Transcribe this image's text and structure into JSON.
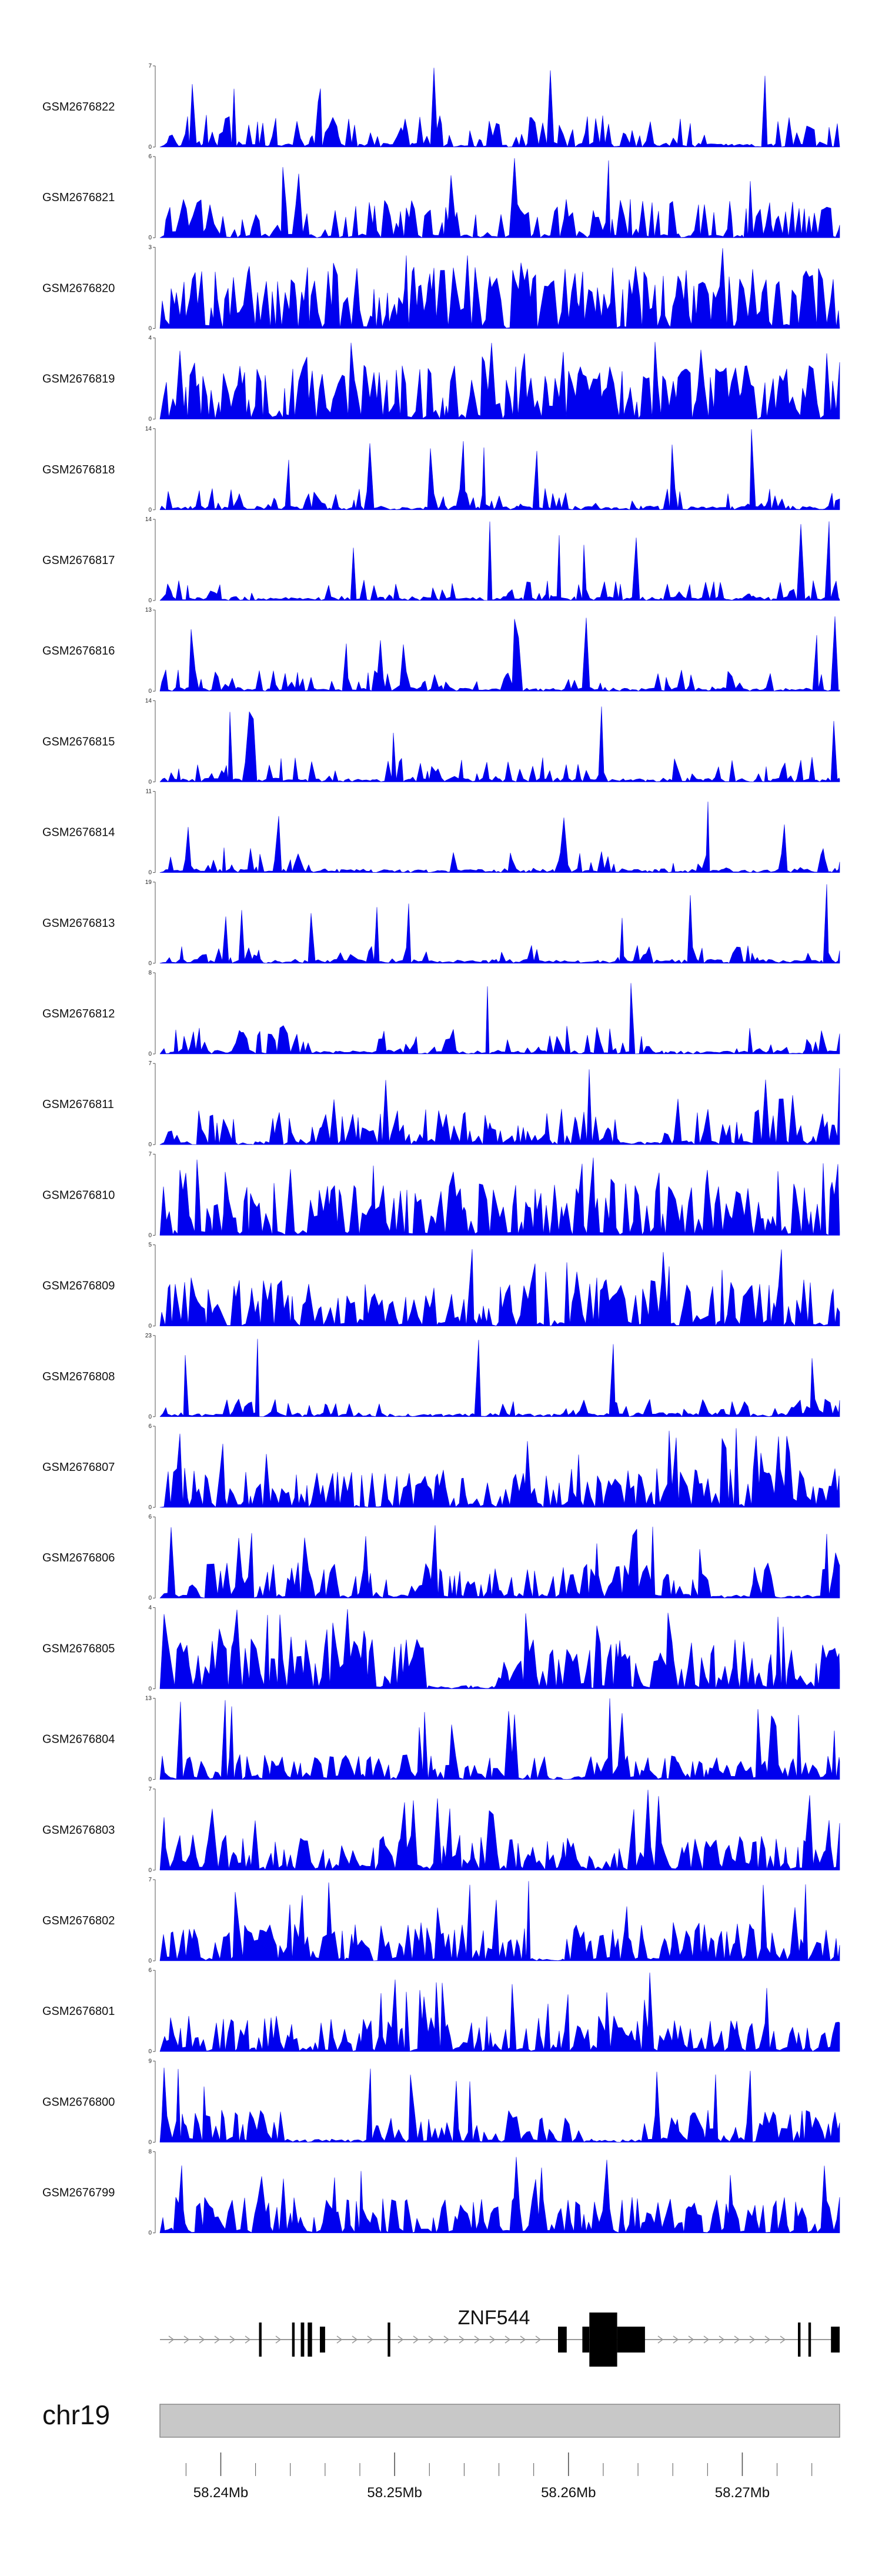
{
  "colors": {
    "signal": "#0000ee",
    "ideogram": "#c8c8c8",
    "ideogramBorder": "#8a8a8a",
    "axis": "#555555",
    "gene": "#000000",
    "intron": "#999999"
  },
  "chart_data": {
    "type": "area",
    "title": "",
    "chromosome": "chr19",
    "xlim_bp": [
      58236500,
      58275600
    ],
    "x_ticks_bp": [
      58240000,
      58250000,
      58260000,
      58270000
    ],
    "x_tick_labels": [
      "58.24Mb",
      "58.25Mb",
      "58.26Mb",
      "58.27Mb"
    ],
    "series": [
      {
        "name": "GSM2676822",
        "ymax": 7,
        "ymin": 0,
        "ymax_label": "7",
        "ymin_label": "0",
        "seed": 22,
        "density": 0.55,
        "gappiness": 0.15,
        "level": 0.18
      },
      {
        "name": "GSM2676821",
        "ymax": 6,
        "ymin": 0,
        "ymax_label": "6",
        "ymin_label": "0",
        "seed": 21,
        "density": 0.6,
        "gappiness": 0.15,
        "level": 0.22
      },
      {
        "name": "GSM2676820",
        "ymax": 3,
        "ymin": 0,
        "ymax_label": "3",
        "ymin_label": "0",
        "seed": 20,
        "density": 0.85,
        "gappiness": 0.05,
        "level": 0.35
      },
      {
        "name": "GSM2676819",
        "ymax": 4,
        "ymin": 0,
        "ymax_label": "4",
        "ymin_label": "0",
        "seed": 19,
        "density": 0.85,
        "gappiness": 0.05,
        "level": 0.3
      },
      {
        "name": "GSM2676818",
        "ymax": 14,
        "ymin": 0,
        "ymax_label": "14",
        "ymin_label": "0",
        "seed": 18,
        "density": 0.4,
        "gappiness": 0.2,
        "level": 0.12
      },
      {
        "name": "GSM2676817",
        "ymax": 14,
        "ymin": 0,
        "ymax_label": "14",
        "ymin_label": "0",
        "seed": 17,
        "density": 0.38,
        "gappiness": 0.22,
        "level": 0.12
      },
      {
        "name": "GSM2676816",
        "ymax": 13,
        "ymin": 0,
        "ymax_label": "13",
        "ymin_label": "0",
        "seed": 16,
        "density": 0.42,
        "gappiness": 0.18,
        "level": 0.12
      },
      {
        "name": "GSM2676815",
        "ymax": 14,
        "ymin": 0,
        "ymax_label": "14",
        "ymin_label": "0",
        "seed": 15,
        "density": 0.3,
        "gappiness": 0.3,
        "level": 0.14
      },
      {
        "name": "GSM2676814",
        "ymax": 11,
        "ymin": 0,
        "ymax_label": "11",
        "ymin_label": "0",
        "seed": 14,
        "density": 0.35,
        "gappiness": 0.25,
        "level": 0.14
      },
      {
        "name": "GSM2676813",
        "ymax": 19,
        "ymin": 0,
        "ymax_label": "19",
        "ymin_label": "0",
        "seed": 13,
        "density": 0.35,
        "gappiness": 0.25,
        "level": 0.1
      },
      {
        "name": "GSM2676812",
        "ymax": 8,
        "ymin": 0,
        "ymax_label": "8",
        "ymin_label": "0",
        "seed": 12,
        "density": 0.5,
        "gappiness": 0.15,
        "level": 0.16
      },
      {
        "name": "GSM2676811",
        "ymax": 7,
        "ymin": 0,
        "ymax_label": "7",
        "ymin_label": "0",
        "seed": 11,
        "density": 0.6,
        "gappiness": 0.1,
        "level": 0.2
      },
      {
        "name": "GSM2676810",
        "ymax": 7,
        "ymin": 0,
        "ymax_label": "7",
        "ymin_label": "0",
        "seed": 10,
        "density": 0.8,
        "gappiness": 0.05,
        "level": 0.3
      },
      {
        "name": "GSM2676809",
        "ymax": 5,
        "ymin": 0,
        "ymax_label": "5",
        "ymin_label": "0",
        "seed": 9,
        "density": 0.75,
        "gappiness": 0.05,
        "level": 0.26
      },
      {
        "name": "GSM2676808",
        "ymax": 23,
        "ymin": 0,
        "ymax_label": "23",
        "ymin_label": "0",
        "seed": 8,
        "density": 0.35,
        "gappiness": 0.25,
        "level": 0.1
      },
      {
        "name": "GSM2676807",
        "ymax": 6,
        "ymin": 0,
        "ymax_label": "6",
        "ymin_label": "0",
        "seed": 7,
        "density": 0.8,
        "gappiness": 0.05,
        "level": 0.22
      },
      {
        "name": "GSM2676806",
        "ymax": 6,
        "ymin": 0,
        "ymax_label": "6",
        "ymin_label": "0",
        "seed": 6,
        "density": 0.65,
        "gappiness": 0.12,
        "level": 0.2
      },
      {
        "name": "GSM2676805",
        "ymax": 4,
        "ymin": 0,
        "ymax_label": "4",
        "ymin_label": "0",
        "seed": 5,
        "density": 0.85,
        "gappiness": 0.05,
        "level": 0.28
      },
      {
        "name": "GSM2676804",
        "ymax": 13,
        "ymin": 0,
        "ymax_label": "13",
        "ymin_label": "0",
        "seed": 4,
        "density": 0.8,
        "gappiness": 0.05,
        "level": 0.14
      },
      {
        "name": "GSM2676803",
        "ymax": 7,
        "ymin": 0,
        "ymax_label": "7",
        "ymin_label": "0",
        "seed": 3,
        "density": 0.75,
        "gappiness": 0.08,
        "level": 0.2
      },
      {
        "name": "GSM2676802",
        "ymax": 7,
        "ymin": 0,
        "ymax_label": "7",
        "ymin_label": "0",
        "seed": 2,
        "density": 0.75,
        "gappiness": 0.08,
        "level": 0.22
      },
      {
        "name": "GSM2676801",
        "ymax": 6,
        "ymin": 0,
        "ymax_label": "6",
        "ymin_label": "0",
        "seed": 1,
        "density": 0.7,
        "gappiness": 0.08,
        "level": 0.2
      },
      {
        "name": "GSM2676800",
        "ymax": 9,
        "ymin": 0,
        "ymax_label": "9",
        "ymin_label": "0",
        "seed": 100,
        "density": 0.75,
        "gappiness": 0.06,
        "level": 0.18
      },
      {
        "name": "GSM2676799",
        "ymax": 8,
        "ymin": 0,
        "ymax_label": "8",
        "ymin_label": "0",
        "seed": 99,
        "density": 0.75,
        "gappiness": 0.06,
        "level": 0.2
      }
    ],
    "gene": {
      "name": "ZNF544",
      "strand": "+",
      "start_bp": 58236500,
      "end_bp": 58275600,
      "exons": [
        {
          "start_bp": 58242200,
          "end_bp": 58242350,
          "height": "thin"
        },
        {
          "start_bp": 58244100,
          "end_bp": 58244250,
          "height": "thin"
        },
        {
          "start_bp": 58244600,
          "end_bp": 58244800,
          "height": "thin"
        },
        {
          "start_bp": 58245000,
          "end_bp": 58245250,
          "height": "thin"
        },
        {
          "start_bp": 58245700,
          "end_bp": 58246000,
          "height": "utr"
        },
        {
          "start_bp": 58249600,
          "end_bp": 58249750,
          "height": "thin"
        },
        {
          "start_bp": 58259400,
          "end_bp": 58259900,
          "height": "utr"
        },
        {
          "start_bp": 58260800,
          "end_bp": 58261200,
          "height": "utr"
        },
        {
          "start_bp": 58261200,
          "end_bp": 58262800,
          "height": "cds"
        },
        {
          "start_bp": 58262800,
          "end_bp": 58264400,
          "height": "utr"
        },
        {
          "start_bp": 58273200,
          "end_bp": 58273350,
          "height": "thin"
        },
        {
          "start_bp": 58273800,
          "end_bp": 58273950,
          "height": "thin"
        },
        {
          "start_bp": 58275100,
          "end_bp": 58275600,
          "height": "utr"
        }
      ]
    }
  }
}
